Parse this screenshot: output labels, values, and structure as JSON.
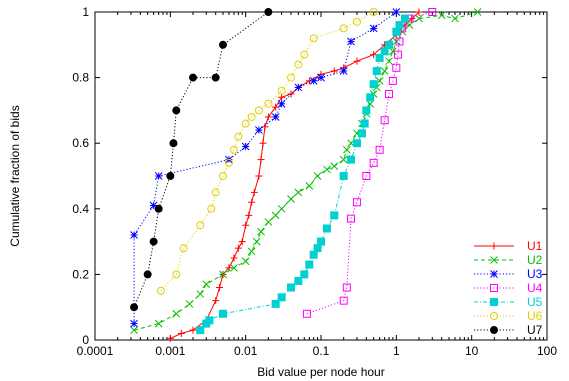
{
  "chart_data": {
    "type": "line",
    "xlabel": "Bid value per node hour",
    "ylabel": "Cumulative fraction of bids",
    "xscale": "log",
    "xlim": [
      0.0001,
      100
    ],
    "ylim": [
      0,
      1
    ],
    "x_ticks": [
      {
        "value": 0.0001,
        "label": "0.0001"
      },
      {
        "value": 0.001,
        "label": "0.001"
      },
      {
        "value": 0.01,
        "label": "0.01"
      },
      {
        "value": 0.1,
        "label": "0.1"
      },
      {
        "value": 1,
        "label": "1"
      },
      {
        "value": 10,
        "label": "10"
      },
      {
        "value": 100,
        "label": "100"
      }
    ],
    "y_ticks": [
      {
        "value": 0,
        "label": "0"
      },
      {
        "value": 0.2,
        "label": "0.2"
      },
      {
        "value": 0.4,
        "label": "0.4"
      },
      {
        "value": 0.6,
        "label": "0.6"
      },
      {
        "value": 0.8,
        "label": "0.8"
      },
      {
        "value": 1,
        "label": "1"
      }
    ],
    "grid": false,
    "legend_position": "bottom-right",
    "series": [
      {
        "name": "U1",
        "color": "#ff0000",
        "dash": "solid",
        "marker": "plus",
        "points": [
          [
            0.001,
            0.005
          ],
          [
            0.0014,
            0.02
          ],
          [
            0.002,
            0.03
          ],
          [
            0.003,
            0.06
          ],
          [
            0.004,
            0.12
          ],
          [
            0.0045,
            0.16
          ],
          [
            0.005,
            0.2
          ],
          [
            0.006,
            0.22
          ],
          [
            0.007,
            0.25
          ],
          [
            0.008,
            0.28
          ],
          [
            0.009,
            0.3
          ],
          [
            0.01,
            0.35
          ],
          [
            0.011,
            0.38
          ],
          [
            0.012,
            0.42
          ],
          [
            0.013,
            0.45
          ],
          [
            0.015,
            0.5
          ],
          [
            0.016,
            0.55
          ],
          [
            0.017,
            0.6
          ],
          [
            0.018,
            0.65
          ],
          [
            0.02,
            0.68
          ],
          [
            0.025,
            0.71
          ],
          [
            0.03,
            0.74
          ],
          [
            0.04,
            0.75
          ],
          [
            0.05,
            0.77
          ],
          [
            0.07,
            0.79
          ],
          [
            0.1,
            0.81
          ],
          [
            0.15,
            0.82
          ],
          [
            0.2,
            0.83
          ],
          [
            0.3,
            0.85
          ],
          [
            0.5,
            0.87
          ],
          [
            0.7,
            0.9
          ],
          [
            1.0,
            0.93
          ],
          [
            1.3,
            0.96
          ],
          [
            1.6,
            0.98
          ],
          [
            2.0,
            1.0
          ]
        ]
      },
      {
        "name": "U2",
        "color": "#00c000",
        "dash": "dashed",
        "marker": "x",
        "points": [
          [
            0.00033,
            0.03
          ],
          [
            0.0007,
            0.05
          ],
          [
            0.0012,
            0.08
          ],
          [
            0.0018,
            0.11
          ],
          [
            0.0025,
            0.14
          ],
          [
            0.003,
            0.17
          ],
          [
            0.005,
            0.2
          ],
          [
            0.007,
            0.22
          ],
          [
            0.01,
            0.24
          ],
          [
            0.012,
            0.27
          ],
          [
            0.014,
            0.3
          ],
          [
            0.016,
            0.33
          ],
          [
            0.02,
            0.36
          ],
          [
            0.025,
            0.38
          ],
          [
            0.03,
            0.4
          ],
          [
            0.04,
            0.43
          ],
          [
            0.05,
            0.45
          ],
          [
            0.07,
            0.47
          ],
          [
            0.09,
            0.5
          ],
          [
            0.12,
            0.52
          ],
          [
            0.15,
            0.53
          ],
          [
            0.2,
            0.55
          ],
          [
            0.22,
            0.58
          ],
          [
            0.25,
            0.6
          ],
          [
            0.3,
            0.63
          ],
          [
            0.35,
            0.66
          ],
          [
            0.4,
            0.69
          ],
          [
            0.45,
            0.72
          ],
          [
            0.5,
            0.75
          ],
          [
            0.55,
            0.77
          ],
          [
            0.6,
            0.79
          ],
          [
            0.7,
            0.82
          ],
          [
            0.8,
            0.85
          ],
          [
            0.9,
            0.88
          ],
          [
            1.0,
            0.91
          ],
          [
            1.2,
            0.94
          ],
          [
            1.5,
            0.96
          ],
          [
            2.0,
            0.98
          ],
          [
            4.0,
            0.99
          ],
          [
            6.0,
            0.98
          ],
          [
            12.0,
            1.0
          ]
        ]
      },
      {
        "name": "U3",
        "color": "#0000ff",
        "dash": "dotted",
        "marker": "star",
        "points": [
          [
            0.00033,
            0.05
          ],
          [
            0.00033,
            0.32
          ],
          [
            0.0006,
            0.41
          ],
          [
            0.0007,
            0.5
          ],
          [
            0.006,
            0.55
          ],
          [
            0.01,
            0.59
          ],
          [
            0.015,
            0.64
          ],
          [
            0.025,
            0.68
          ],
          [
            0.03,
            0.72
          ],
          [
            0.05,
            0.77
          ],
          [
            0.08,
            0.79
          ],
          [
            0.1,
            0.8
          ],
          [
            0.2,
            0.82
          ],
          [
            0.25,
            0.91
          ],
          [
            0.5,
            0.95
          ],
          [
            1.0,
            1.0
          ]
        ]
      },
      {
        "name": "U4",
        "color": "#ff00ff",
        "dash": "dotted",
        "marker": "square-open",
        "points": [
          [
            0.065,
            0.08
          ],
          [
            0.2,
            0.12
          ],
          [
            0.22,
            0.16
          ],
          [
            0.25,
            0.37
          ],
          [
            0.3,
            0.42
          ],
          [
            0.4,
            0.5
          ],
          [
            0.5,
            0.54
          ],
          [
            0.6,
            0.58
          ],
          [
            0.7,
            0.67
          ],
          [
            0.8,
            0.75
          ],
          [
            0.9,
            0.79
          ],
          [
            1.0,
            0.83
          ],
          [
            1.05,
            0.87
          ],
          [
            1.1,
            0.91
          ],
          [
            1.2,
            0.95
          ],
          [
            1.5,
            0.98
          ],
          [
            3.0,
            1.0
          ]
        ]
      },
      {
        "name": "U5",
        "color": "#00d0d0",
        "dash": "dashdot",
        "marker": "square-filled",
        "points": [
          [
            0.0025,
            0.03
          ],
          [
            0.003,
            0.05
          ],
          [
            0.0033,
            0.06
          ],
          [
            0.005,
            0.08
          ],
          [
            0.025,
            0.11
          ],
          [
            0.03,
            0.13
          ],
          [
            0.04,
            0.16
          ],
          [
            0.05,
            0.18
          ],
          [
            0.06,
            0.2
          ],
          [
            0.07,
            0.23
          ],
          [
            0.08,
            0.26
          ],
          [
            0.09,
            0.28
          ],
          [
            0.1,
            0.3
          ],
          [
            0.12,
            0.34
          ],
          [
            0.15,
            0.38
          ],
          [
            0.2,
            0.5
          ],
          [
            0.25,
            0.55
          ],
          [
            0.3,
            0.6
          ],
          [
            0.35,
            0.63
          ],
          [
            0.38,
            0.66
          ],
          [
            0.4,
            0.7
          ],
          [
            0.45,
            0.74
          ],
          [
            0.5,
            0.78
          ],
          [
            0.55,
            0.82
          ],
          [
            0.6,
            0.86
          ],
          [
            0.7,
            0.88
          ],
          [
            0.8,
            0.9
          ],
          [
            1.0,
            0.94
          ],
          [
            1.1,
            0.96
          ],
          [
            1.3,
            0.98
          ]
        ]
      },
      {
        "name": "U6",
        "color": "#e0d000",
        "dash": "dotted",
        "marker": "circle-open",
        "points": [
          [
            0.00075,
            0.15
          ],
          [
            0.0012,
            0.2
          ],
          [
            0.0015,
            0.28
          ],
          [
            0.0025,
            0.35
          ],
          [
            0.0035,
            0.4
          ],
          [
            0.004,
            0.45
          ],
          [
            0.005,
            0.5
          ],
          [
            0.006,
            0.54
          ],
          [
            0.007,
            0.58
          ],
          [
            0.008,
            0.62
          ],
          [
            0.01,
            0.66
          ],
          [
            0.012,
            0.68
          ],
          [
            0.015,
            0.7
          ],
          [
            0.02,
            0.72
          ],
          [
            0.03,
            0.76
          ],
          [
            0.04,
            0.8
          ],
          [
            0.05,
            0.84
          ],
          [
            0.06,
            0.87
          ],
          [
            0.08,
            0.92
          ],
          [
            0.2,
            0.95
          ],
          [
            0.3,
            0.97
          ],
          [
            0.5,
            1.0
          ]
        ]
      },
      {
        "name": "U7",
        "color": "#000000",
        "dash": "dotted",
        "marker": "circle-filled",
        "points": [
          [
            0.00033,
            0.1
          ],
          [
            0.0005,
            0.2
          ],
          [
            0.0006,
            0.3
          ],
          [
            0.0007,
            0.4
          ],
          [
            0.001,
            0.5
          ],
          [
            0.0011,
            0.6
          ],
          [
            0.0012,
            0.7
          ],
          [
            0.002,
            0.8
          ],
          [
            0.004,
            0.8
          ],
          [
            0.005,
            0.9
          ],
          [
            0.02,
            1.0
          ]
        ]
      }
    ]
  }
}
